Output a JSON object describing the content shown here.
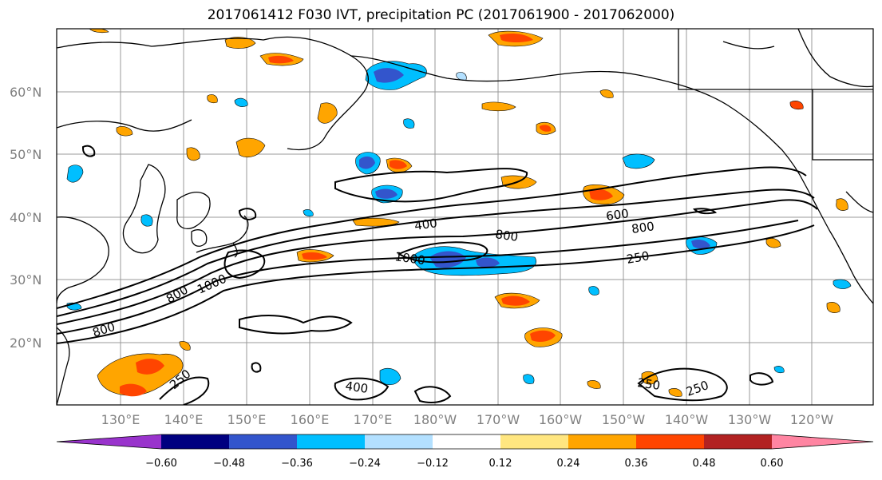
{
  "title": "2017061412 F030 IVT, precipitation PC (2017061900 - 2017062000)",
  "map": {
    "lat_ticks": [
      "60°N",
      "50°N",
      "40°N",
      "30°N",
      "20°N"
    ],
    "lon_ticks": [
      "130°E",
      "140°E",
      "150°E",
      "160°E",
      "170°E",
      "180°W",
      "170°W",
      "160°W",
      "150°W",
      "140°W",
      "130°W",
      "120°W"
    ],
    "contour_labels": [
      {
        "text": "400"
      },
      {
        "text": "800"
      },
      {
        "text": "1000"
      },
      {
        "text": "600"
      },
      {
        "text": "800"
      },
      {
        "text": "250"
      },
      {
        "text": "800"
      },
      {
        "text": "1000"
      },
      {
        "text": "800"
      },
      {
        "text": "250"
      },
      {
        "text": "400"
      },
      {
        "text": "250"
      },
      {
        "text": "250"
      }
    ]
  },
  "colorbar": {
    "ticks": [
      "−0.60",
      "−0.48",
      "−0.36",
      "−0.24",
      "−0.12",
      "0.12",
      "0.24",
      "0.36",
      "0.48",
      "0.60"
    ],
    "colors": [
      "#9933cc",
      "#000080",
      "#3355cc",
      "#00bfff",
      "#b3e0ff",
      "#ffffff",
      "#ffe680",
      "#ffa500",
      "#ff4500",
      "#b22222",
      "#ff85a2"
    ]
  },
  "colors": {
    "positive": "#ffa500",
    "positive_core": "#ff4500",
    "negative": "#00bfff",
    "negative_core": "#3355cc"
  }
}
